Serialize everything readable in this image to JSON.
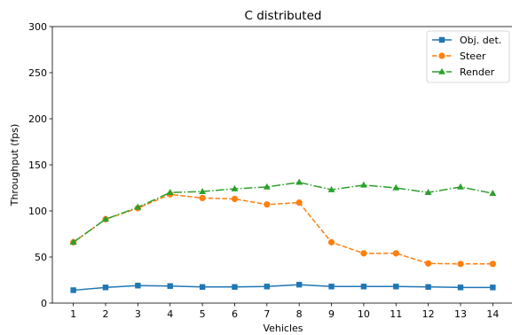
{
  "chart_data": {
    "type": "line",
    "title": "C distributed",
    "xlabel": "Vehicles",
    "ylabel": "Throughput (fps)",
    "x": [
      1,
      2,
      3,
      4,
      5,
      6,
      7,
      8,
      9,
      10,
      11,
      12,
      13,
      14
    ],
    "xlim": [
      0.35,
      14.65
    ],
    "ylim": [
      0,
      300
    ],
    "yticks": [
      0,
      50,
      100,
      150,
      200,
      250,
      300
    ],
    "grid": false,
    "legend_position": "top-right",
    "series": [
      {
        "name": "Obj. det.",
        "color": "#1f77b4",
        "linestyle": "solid",
        "marker": "square",
        "values": [
          14,
          17,
          19,
          18.5,
          17.5,
          17.5,
          18,
          20,
          18,
          18,
          18,
          17.5,
          17,
          17
        ]
      },
      {
        "name": "Steer",
        "color": "#ff7f0e",
        "linestyle": "dashed",
        "marker": "circle",
        "values": [
          66,
          91,
          103,
          118,
          114,
          113,
          107,
          109,
          66,
          54,
          54,
          43,
          42.5,
          42.5
        ]
      },
      {
        "name": "Render",
        "color": "#2ca02c",
        "linestyle": "dashdot",
        "marker": "triangle",
        "values": [
          66,
          91,
          104,
          120,
          121,
          124,
          126,
          131,
          123,
          128,
          125,
          120,
          126,
          119
        ]
      }
    ]
  }
}
